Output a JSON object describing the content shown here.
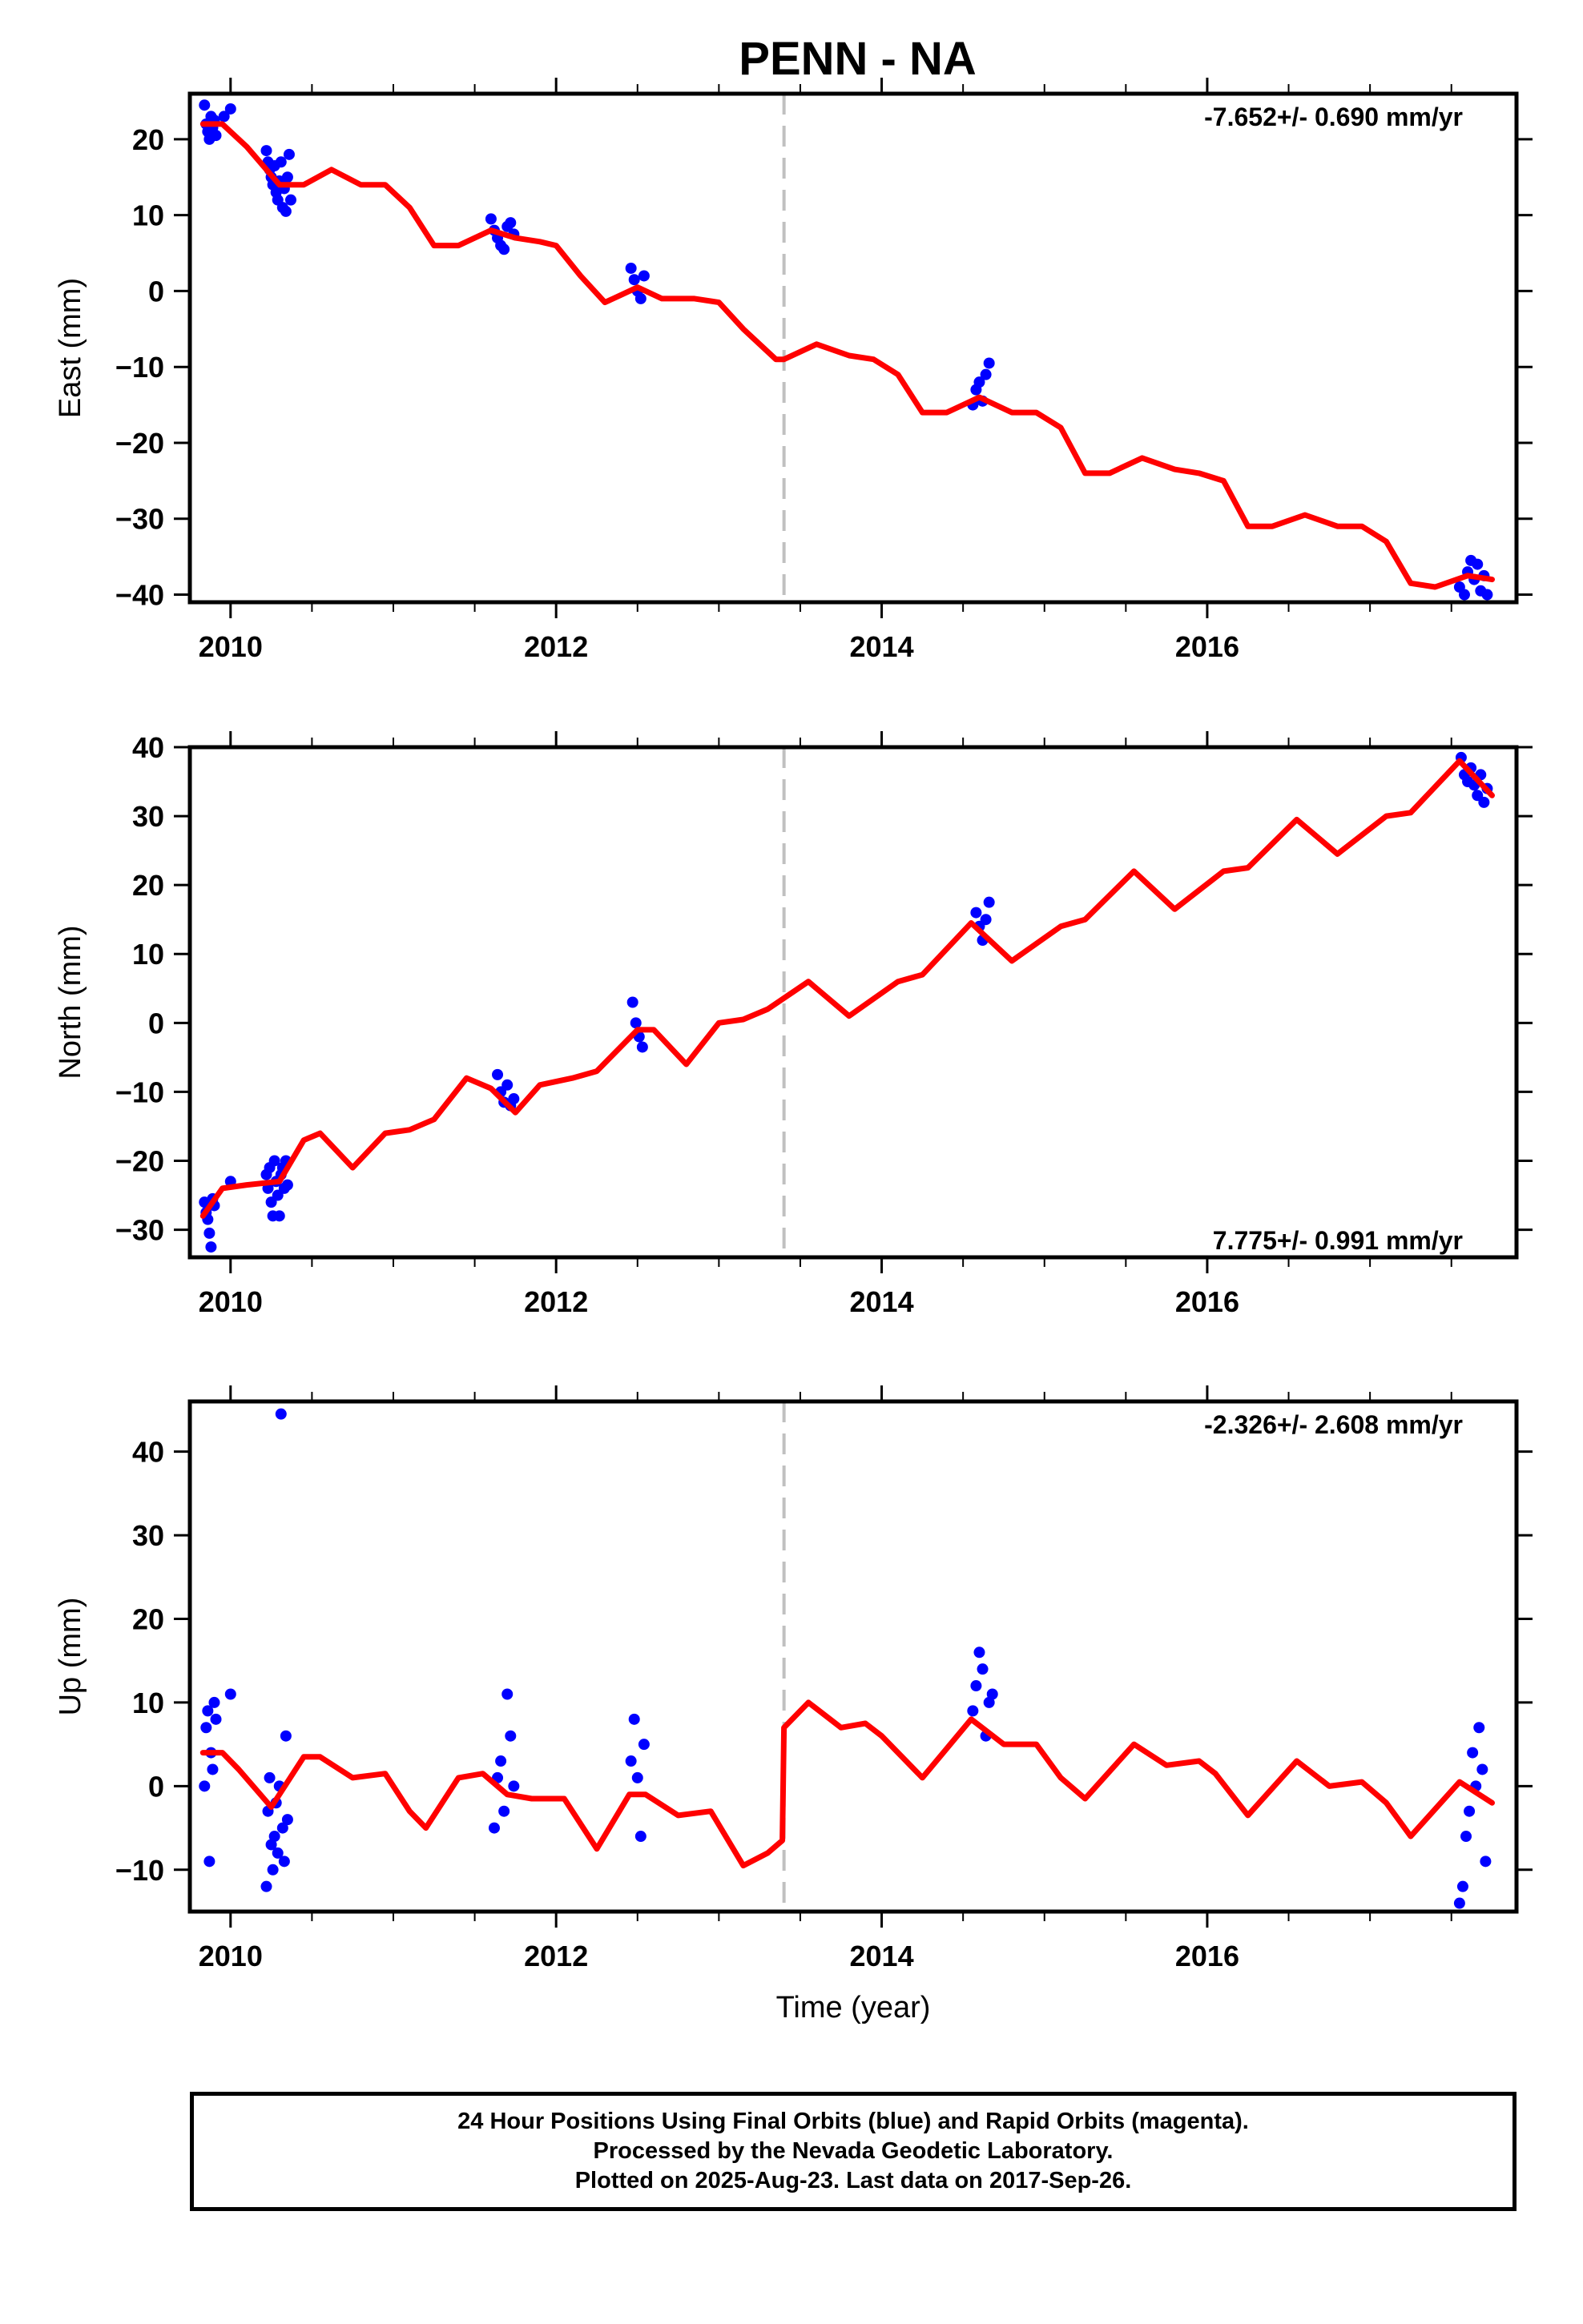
{
  "title": "PENN - NA",
  "colors": {
    "final_orbits": "#0000ff",
    "model": "#ff0000",
    "offset_line": "#c0c0c0"
  },
  "chart_data": [
    {
      "type": "scatter",
      "ylabel": "East (mm)",
      "xlabel": "",
      "rate_label": "-7.652+/- 0.690 mm/yr",
      "xlim": [
        2009.75,
        2017.9
      ],
      "ylim": [
        -41,
        26
      ],
      "xticks": [
        2010,
        2012,
        2014,
        2016
      ],
      "xtick_labels": [
        "2010",
        "2012",
        "2014",
        "2016"
      ],
      "yticks": [
        -40,
        -30,
        -20,
        -10,
        0,
        10,
        20
      ],
      "ytick_labels": [
        "−40",
        "−30",
        "−20",
        "−10",
        "0",
        "10",
        "20"
      ],
      "offset_x": 2013.4,
      "model": {
        "x": [
          2009.83,
          2009.95,
          2010.1,
          2010.3,
          2010.45,
          2010.62,
          2010.8,
          2010.95,
          2011.1,
          2011.25,
          2011.4,
          2011.6,
          2011.75,
          2011.9,
          2012.0,
          2012.15,
          2012.3,
          2012.4,
          2012.5,
          2012.65,
          2012.85,
          2013.0,
          2013.15,
          2013.35,
          2013.4,
          2013.6,
          2013.8,
          2013.95,
          2014.1,
          2014.25,
          2014.4,
          2014.6,
          2014.8,
          2014.95,
          2015.1,
          2015.25,
          2015.4,
          2015.6,
          2015.8,
          2015.95,
          2016.1,
          2016.25,
          2016.4,
          2016.6,
          2016.8,
          2016.95,
          2017.1,
          2017.25,
          2017.4,
          2017.6,
          2017.75
        ],
        "y": [
          22,
          22,
          19,
          14,
          14,
          16,
          14,
          14,
          11,
          6,
          6,
          8,
          7,
          6.5,
          6,
          2,
          -1.5,
          -0.5,
          0.5,
          -1,
          -1,
          -1.5,
          -5,
          -9,
          -9,
          -7,
          -8.5,
          -9,
          -11,
          -16,
          -16,
          -14,
          -16,
          -16,
          -18,
          -24,
          -24,
          -22,
          -23.5,
          -24,
          -25,
          -31,
          -31,
          -29.5,
          -31,
          -31,
          -33,
          -38.5,
          -39,
          -37.5,
          -38
        ]
      },
      "points": {
        "x": [
          2009.84,
          2009.85,
          2009.86,
          2009.87,
          2009.88,
          2009.89,
          2009.9,
          2009.91,
          2009.96,
          2010.0,
          2010.22,
          2010.23,
          2010.24,
          2010.25,
          2010.26,
          2010.27,
          2010.28,
          2010.29,
          2010.3,
          2010.31,
          2010.32,
          2010.33,
          2010.34,
          2010.35,
          2010.36,
          2010.37,
          2011.6,
          2011.62,
          2011.64,
          2011.66,
          2011.68,
          2011.7,
          2011.72,
          2011.74,
          2012.46,
          2012.48,
          2012.5,
          2012.52,
          2012.54,
          2014.56,
          2014.58,
          2014.6,
          2014.62,
          2014.64,
          2014.66,
          2017.55,
          2017.58,
          2017.6,
          2017.62,
          2017.64,
          2017.66,
          2017.68,
          2017.7,
          2017.72
        ],
        "y": [
          24.5,
          22,
          21,
          20,
          23,
          21.5,
          22.5,
          20.5,
          23,
          24,
          18.5,
          17,
          16,
          15,
          14,
          16.5,
          13,
          12,
          14.5,
          17,
          11,
          13.5,
          10.5,
          15,
          18,
          12,
          9.5,
          8,
          7,
          6,
          5.5,
          8.5,
          9,
          7.5,
          3,
          1.5,
          0,
          -1,
          2,
          -15,
          -13,
          -12,
          -14.5,
          -11,
          -9.5,
          -39,
          -40,
          -37,
          -35.5,
          -38,
          -36,
          -39.5,
          -37.5,
          -40
        ]
      }
    },
    {
      "type": "scatter",
      "ylabel": "North (mm)",
      "xlabel": "",
      "rate_label": "7.775+/- 0.991 mm/yr",
      "xlim": [
        2009.75,
        2017.9
      ],
      "ylim": [
        -34,
        40
      ],
      "xticks": [
        2010,
        2012,
        2014,
        2016
      ],
      "xtick_labels": [
        "2010",
        "2012",
        "2014",
        "2016"
      ],
      "yticks": [
        -30,
        -20,
        -10,
        0,
        10,
        20,
        30,
        40
      ],
      "ytick_labels": [
        "−30",
        "−20",
        "−10",
        "0",
        "10",
        "20",
        "30",
        "40"
      ],
      "offset_x": 2013.4,
      "model": {
        "x": [
          2009.83,
          2009.95,
          2010.1,
          2010.3,
          2010.45,
          2010.55,
          2010.75,
          2010.95,
          2011.1,
          2011.25,
          2011.45,
          2011.6,
          2011.75,
          2011.9,
          2012.1,
          2012.25,
          2012.5,
          2012.6,
          2012.8,
          2013.0,
          2013.15,
          2013.3,
          2013.55,
          2013.8,
          2014.1,
          2014.25,
          2014.55,
          2014.8,
          2015.1,
          2015.25,
          2015.55,
          2015.8,
          2016.1,
          2016.25,
          2016.55,
          2016.8,
          2017.1,
          2017.25,
          2017.55,
          2017.75
        ],
        "y": [
          -28,
          -24,
          -23.5,
          -23,
          -17,
          -16,
          -21,
          -16,
          -15.5,
          -14,
          -8,
          -9.5,
          -13,
          -9,
          -8,
          -7,
          -1,
          -1,
          -6,
          0,
          0.5,
          2,
          6,
          1,
          6,
          7,
          14.5,
          9,
          14,
          15,
          22,
          16.5,
          22,
          22.5,
          29.5,
          24.5,
          30,
          30.5,
          38,
          33
        ]
      },
      "points": {
        "x": [
          2009.84,
          2009.85,
          2009.86,
          2009.87,
          2009.88,
          2009.89,
          2009.9,
          2010.0,
          2010.22,
          2010.23,
          2010.24,
          2010.25,
          2010.26,
          2010.27,
          2010.28,
          2010.29,
          2010.3,
          2010.31,
          2010.32,
          2010.33,
          2010.34,
          2010.35,
          2011.64,
          2011.66,
          2011.68,
          2011.7,
          2011.72,
          2011.74,
          2012.47,
          2012.49,
          2012.51,
          2012.53,
          2014.58,
          2014.6,
          2014.62,
          2014.64,
          2014.66,
          2017.56,
          2017.58,
          2017.6,
          2017.62,
          2017.64,
          2017.66,
          2017.68,
          2017.7,
          2017.72
        ],
        "y": [
          -26,
          -27.5,
          -28.5,
          -30.5,
          -32.5,
          -25.5,
          -26.5,
          -23,
          -22,
          -24,
          -21,
          -26,
          -28,
          -20,
          -23,
          -25,
          -28,
          -22,
          -21,
          -24,
          -20,
          -23.5,
          -7.5,
          -10,
          -11.5,
          -9,
          -12,
          -11,
          3,
          0,
          -2,
          -3.5,
          16,
          14,
          12,
          15,
          17.5,
          38.5,
          36,
          35,
          37,
          34.5,
          33,
          36,
          32,
          34
        ]
      }
    },
    {
      "type": "scatter",
      "ylabel": "Up (mm)",
      "xlabel": "Time (year)",
      "rate_label": "-2.326+/- 2.608 mm/yr",
      "xlim": [
        2009.75,
        2017.9
      ],
      "ylim": [
        -15,
        46
      ],
      "xticks": [
        2010,
        2012,
        2014,
        2016
      ],
      "xtick_labels": [
        "2010",
        "2012",
        "2014",
        "2016"
      ],
      "yticks": [
        -10,
        0,
        10,
        20,
        30,
        40
      ],
      "ytick_labels": [
        "−10",
        "0",
        "10",
        "20",
        "30",
        "40"
      ],
      "offset_x": 2013.4,
      "model": {
        "x": [
          2009.83,
          2009.95,
          2010.05,
          2010.25,
          2010.45,
          2010.55,
          2010.75,
          2010.95,
          2011.1,
          2011.2,
          2011.4,
          2011.55,
          2011.7,
          2011.85,
          2011.95,
          2012.05,
          2012.25,
          2012.45,
          2012.55,
          2012.75,
          2012.95,
          2013.15,
          2013.3,
          2013.39,
          2013.4,
          2013.55,
          2013.75,
          2013.9,
          2014.0,
          2014.25,
          2014.55,
          2014.75,
          2014.95,
          2015.1,
          2015.25,
          2015.55,
          2015.75,
          2015.95,
          2016.05,
          2016.25,
          2016.55,
          2016.75,
          2016.95,
          2017.1,
          2017.25,
          2017.55,
          2017.75
        ],
        "y": [
          4,
          4,
          2,
          -2.5,
          3.5,
          3.5,
          1,
          1.5,
          -3,
          -5,
          1,
          1.5,
          -1,
          -1.5,
          -1.5,
          -1.5,
          -7.5,
          -1,
          -1,
          -3.5,
          -3,
          -9.5,
          -8,
          -6.5,
          7,
          10,
          7,
          7.5,
          6,
          1,
          8,
          5,
          5,
          1,
          -1.5,
          5,
          2.5,
          3,
          1.5,
          -3.5,
          3,
          0,
          0.5,
          -2,
          -6,
          0.5,
          -2
        ]
      },
      "points": {
        "x": [
          2009.84,
          2009.85,
          2009.86,
          2009.87,
          2009.88,
          2009.89,
          2009.9,
          2009.91,
          2010.0,
          2010.22,
          2010.23,
          2010.24,
          2010.25,
          2010.26,
          2010.27,
          2010.28,
          2010.29,
          2010.3,
          2010.31,
          2010.32,
          2010.33,
          2010.34,
          2010.35,
          2011.62,
          2011.64,
          2011.66,
          2011.68,
          2011.7,
          2011.72,
          2011.74,
          2012.46,
          2012.48,
          2012.5,
          2012.52,
          2012.54,
          2014.56,
          2014.58,
          2014.6,
          2014.62,
          2014.64,
          2014.66,
          2014.68,
          2017.55,
          2017.57,
          2017.59,
          2017.61,
          2017.63,
          2017.65,
          2017.67,
          2017.69,
          2017.71
        ],
        "y": [
          0,
          7,
          9,
          -9,
          4,
          2,
          10,
          8,
          11,
          -12,
          -3,
          1,
          -7,
          -10,
          -6,
          -2,
          -8,
          0,
          44.5,
          -5,
          -9,
          6,
          -4,
          -5,
          1,
          3,
          -3,
          11,
          6,
          0,
          3,
          8,
          1,
          -6,
          5,
          9,
          12,
          16,
          14,
          6,
          10,
          11,
          -14,
          -12,
          -6,
          -3,
          4,
          0,
          7,
          2,
          -9
        ]
      }
    }
  ],
  "footer": {
    "line1": "24 Hour Positions Using Final Orbits (blue) and Rapid Orbits (magenta).",
    "line2": "Processed by the Nevada Geodetic Laboratory.",
    "line3": "Plotted on 2025-Aug-23. Last data on 2017-Sep-26."
  }
}
